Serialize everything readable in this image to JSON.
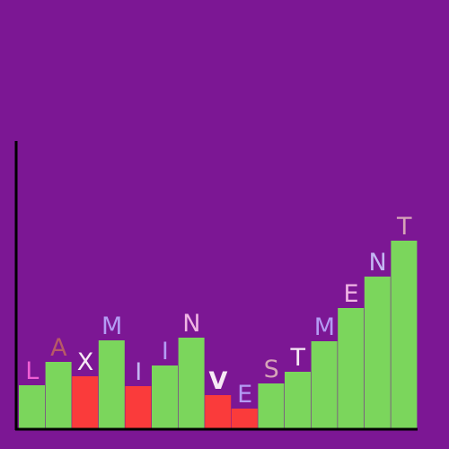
{
  "colors": {
    "background": "#7c1794",
    "axis": "#000000",
    "bar_default": "#7bd65c",
    "bar_highlight": "#fa3b3b"
  },
  "chart_data": {
    "type": "bar",
    "title": "",
    "xlabel": "",
    "ylabel": "",
    "ylim": [
      0,
      320
    ],
    "grid": false,
    "legend": "none",
    "categories": [
      "L",
      "A",
      "X",
      "M",
      "I",
      "I",
      "N",
      "V",
      "E",
      "S",
      "T",
      "M",
      "E",
      "N",
      "T"
    ],
    "values": [
      48,
      74,
      58,
      98,
      47,
      70,
      101,
      37,
      22,
      50,
      63,
      97,
      134,
      169,
      209
    ],
    "bar_colors": [
      "#7bd65c",
      "#7bd65c",
      "#fa3b3b",
      "#7bd65c",
      "#fa3b3b",
      "#7bd65c",
      "#7bd65c",
      "#fa3b3b",
      "#fa3b3b",
      "#7bd65c",
      "#7bd65c",
      "#7bd65c",
      "#7bd65c",
      "#7bd65c",
      "#7bd65c"
    ],
    "label_colors": [
      "#f05fd4",
      "#b85a66",
      "#f6e9f5",
      "#b49bf4",
      "#c4b6f3",
      "#b49bf4",
      "#f0b5e4",
      "#f6e9f5",
      "#b49bf4",
      "#d6a3b8",
      "#f6e9f5",
      "#b49bf4",
      "#f0b5e4",
      "#c4b6f3",
      "#d6a3b8"
    ],
    "label_bold": [
      false,
      false,
      false,
      false,
      false,
      false,
      false,
      true,
      false,
      false,
      false,
      false,
      false,
      false,
      false
    ]
  }
}
